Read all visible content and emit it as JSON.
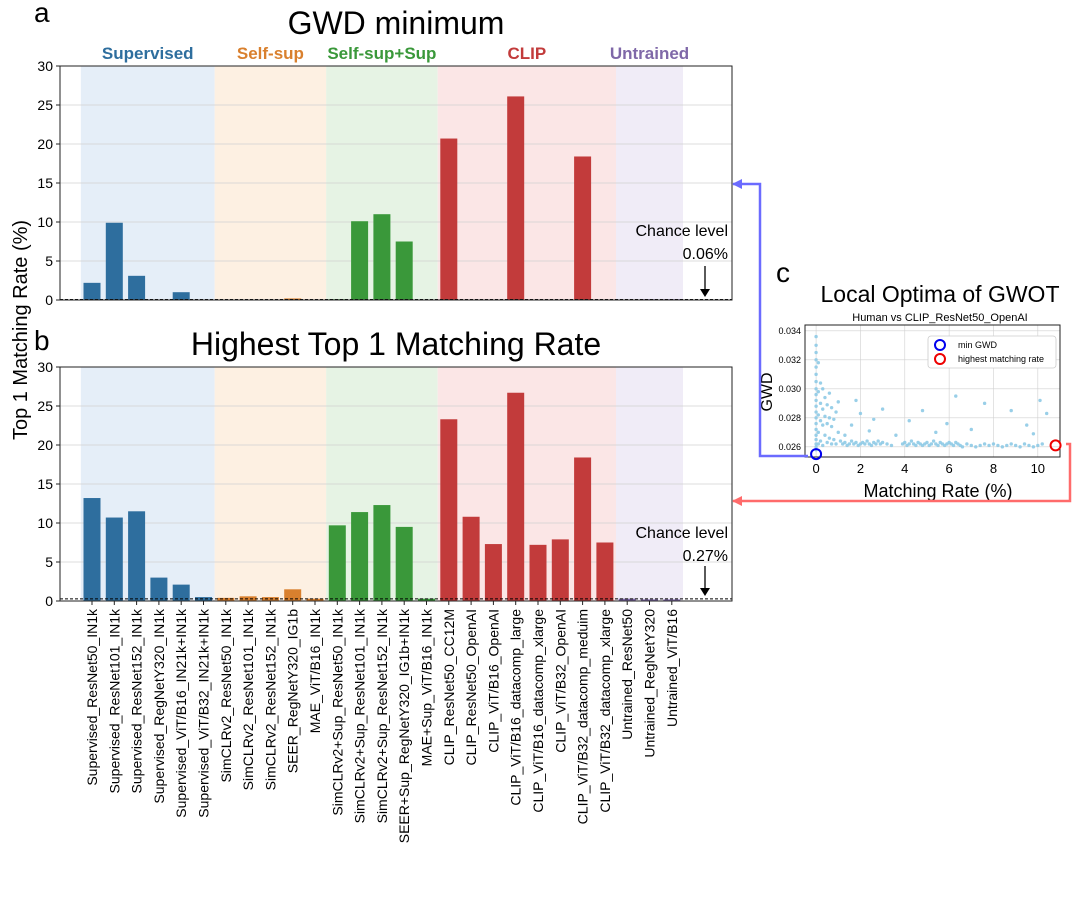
{
  "panel_letters": {
    "a": "a",
    "b": "b",
    "c": "c"
  },
  "group_colors": {
    "Supervised": "#2e6e9e",
    "Self-sup": "#d9802e",
    "Self-sup+Sup": "#3a983a",
    "CLIP": "#c23b3b",
    "Untrained": "#7f68a8"
  },
  "group_bg_colors": {
    "Supervised": "#e5eef8",
    "Self-sup": "#fdf0e2",
    "Self-sup+Sup": "#e6f3e4",
    "CLIP": "#fbe6e6",
    "Untrained": "#f0ecf7"
  },
  "chart_data": [
    {
      "type": "bar",
      "title": "GWD minimum",
      "ylabel": "Top 1 Matching Rate (%)",
      "ylim": [
        0,
        30
      ],
      "yticks": [
        0,
        5,
        10,
        15,
        20,
        25,
        30
      ],
      "groups": [
        {
          "name": "Supervised",
          "start": 0,
          "end": 5
        },
        {
          "name": "Self-sup",
          "start": 6,
          "end": 10
        },
        {
          "name": "Self-sup+Sup",
          "start": 11,
          "end": 15
        },
        {
          "name": "CLIP",
          "start": 16,
          "end": 23
        },
        {
          "name": "Untrained",
          "start": 24,
          "end": 26
        }
      ],
      "categories": [
        "Supervised_ResNet50_IN1k",
        "Supervised_ResNet101_IN1k",
        "Supervised_ResNet152_IN1k",
        "Supervised_RegNetY320_IN1k",
        "Supervised_ViT/B16_IN21k+IN1k",
        "Supervised_ViT/B32_IN21k+IN1k",
        "SimCLRv2_ResNet50_IN1k",
        "SimCLRv2_ResNet101_IN1k",
        "SimCLRv2_ResNet152_IN1k",
        "SEER_RegNetY320_IG1b",
        "MAE_ViT/B16_IN1k",
        "SimCLRv2+Sup_ResNet50_IN1k",
        "SimCLRv2+Sup_ResNet101_IN1k",
        "SimCLRv2+Sup_ResNet152_IN1k",
        "SEER+Sup_RegNetY320_IG1b+IN1k",
        "MAE+Sup_ViT/B16_IN1k",
        "CLIP_ResNet50_CC12M",
        "CLIP_ResNet50_OpenAI",
        "CLIP_ViT/B16_OpenAI",
        "CLIP_ViT/B16_datacomp_large",
        "CLIP_ViT/B16_datacomp_xlarge",
        "CLIP_ViT/B32_OpenAI",
        "CLIP_ViT/B32_datacomp_meduim",
        "CLIP_ViT/B32_datacomp_xlarge",
        "Untrained_ResNet50",
        "Untrained_RegNetY320",
        "Untrained_ViT/B16"
      ],
      "values": [
        2.2,
        9.9,
        3.1,
        0,
        1.0,
        0,
        0,
        0,
        0,
        0.2,
        0,
        0.1,
        10.1,
        11.0,
        7.5,
        0,
        20.7,
        0,
        0,
        26.1,
        0,
        0,
        18.4,
        0,
        0,
        0.1,
        0.1
      ],
      "chance_level": 0.06,
      "chance_label": "Chance level",
      "chance_value_label": "0.06%",
      "grid": "horizontal"
    },
    {
      "type": "bar",
      "title": "Highest Top 1 Matching Rate",
      "ylabel": "Top 1 Matching Rate (%)",
      "ylim": [
        0,
        30
      ],
      "yticks": [
        0,
        5,
        10,
        15,
        20,
        25,
        30
      ],
      "values": [
        13.2,
        10.7,
        11.5,
        3.0,
        2.1,
        0.5,
        0.4,
        0.6,
        0.5,
        1.5,
        0.3,
        9.7,
        11.4,
        12.3,
        9.5,
        0.3,
        23.3,
        10.8,
        7.3,
        26.7,
        7.2,
        7.9,
        18.4,
        7.5,
        0.3,
        0.2,
        0.2
      ],
      "chance_level": 0.27,
      "chance_label": "Chance level",
      "chance_value_label": "0.27%",
      "grid": "horizontal"
    },
    {
      "type": "scatter",
      "title": "Local Optima of GWOT",
      "subtitle": "Human vs CLIP_ResNet50_OpenAI",
      "xlabel": "Matching Rate (%)",
      "ylabel": "GWD",
      "xlim": [
        -0.5,
        11
      ],
      "ylim": [
        0.0253,
        0.0344
      ],
      "xticks": [
        0,
        2,
        4,
        6,
        8,
        10
      ],
      "yticks": [
        0.026,
        0.028,
        0.03,
        0.032,
        0.034
      ],
      "ytick_labels": [
        "0.026",
        "0.028",
        "0.030",
        "0.032",
        "0.034"
      ],
      "point_color": "#8ecae6",
      "legend": [
        {
          "label": "min GWD",
          "color": "#0000ee"
        },
        {
          "label": "highest matching rate",
          "color": "#ee0000"
        }
      ],
      "legend_position": "top-right",
      "highlight_min_gwd": {
        "x": 0.0,
        "y": 0.0255
      },
      "highlight_max_rate": {
        "x": 10.8,
        "y": 0.0261
      },
      "points": [
        [
          0,
          0.0262
        ],
        [
          0,
          0.0265
        ],
        [
          0,
          0.0268
        ],
        [
          0,
          0.0272
        ],
        [
          0,
          0.0276
        ],
        [
          0,
          0.028
        ],
        [
          0,
          0.0284
        ],
        [
          0,
          0.0288
        ],
        [
          0,
          0.0292
        ],
        [
          0,
          0.0296
        ],
        [
          0,
          0.03
        ],
        [
          0,
          0.0305
        ],
        [
          0,
          0.031
        ],
        [
          0,
          0.0315
        ],
        [
          0,
          0.032
        ],
        [
          0,
          0.0325
        ],
        [
          0,
          0.033
        ],
        [
          0,
          0.0336
        ],
        [
          0,
          0.0258
        ],
        [
          0,
          0.026
        ],
        [
          0.1,
          0.0262
        ],
        [
          0.1,
          0.027
        ],
        [
          0.1,
          0.0282
        ],
        [
          0.1,
          0.0298
        ],
        [
          0.1,
          0.0318
        ],
        [
          0.2,
          0.0264
        ],
        [
          0.2,
          0.0278
        ],
        [
          0.2,
          0.029
        ],
        [
          0.2,
          0.0304
        ],
        [
          0.3,
          0.0261
        ],
        [
          0.3,
          0.0275
        ],
        [
          0.3,
          0.0286
        ],
        [
          0.3,
          0.03
        ],
        [
          0.4,
          0.0268
        ],
        [
          0.4,
          0.0281
        ],
        [
          0.4,
          0.0294
        ],
        [
          0.5,
          0.0263
        ],
        [
          0.5,
          0.0276
        ],
        [
          0.5,
          0.0289
        ],
        [
          0.6,
          0.0266
        ],
        [
          0.6,
          0.028
        ],
        [
          0.6,
          0.0297
        ],
        [
          0.7,
          0.0262
        ],
        [
          0.7,
          0.0274
        ],
        [
          0.7,
          0.0287
        ],
        [
          0.8,
          0.0265
        ],
        [
          0.8,
          0.0279
        ],
        [
          0.9,
          0.0262
        ],
        [
          0.9,
          0.0284
        ],
        [
          1.0,
          0.027
        ],
        [
          1.0,
          0.0291
        ],
        [
          1.1,
          0.0264
        ],
        [
          1.2,
          0.0262
        ],
        [
          1.3,
          0.0263
        ],
        [
          1.4,
          0.0261
        ],
        [
          1.5,
          0.0262
        ],
        [
          1.6,
          0.0264
        ],
        [
          1.7,
          0.0262
        ],
        [
          1.8,
          0.0263
        ],
        [
          1.9,
          0.0261
        ],
        [
          2.0,
          0.0262
        ],
        [
          2.1,
          0.0263
        ],
        [
          2.2,
          0.0262
        ],
        [
          2.3,
          0.0264
        ],
        [
          2.4,
          0.0262
        ],
        [
          2.5,
          0.0261
        ],
        [
          2.6,
          0.0263
        ],
        [
          2.7,
          0.0262
        ],
        [
          2.8,
          0.0264
        ],
        [
          2.9,
          0.0262
        ],
        [
          3.0,
          0.0263
        ],
        [
          3.2,
          0.0262
        ],
        [
          3.4,
          0.0261
        ],
        [
          1.3,
          0.0268
        ],
        [
          1.6,
          0.0275
        ],
        [
          2.0,
          0.0283
        ],
        [
          2.4,
          0.0271
        ],
        [
          3.0,
          0.0286
        ],
        [
          3.6,
          0.0268
        ],
        [
          1.8,
          0.0292
        ],
        [
          2.6,
          0.0279
        ],
        [
          3.9,
          0.0262
        ],
        [
          4.0,
          0.0263
        ],
        [
          4.1,
          0.0261
        ],
        [
          4.2,
          0.0262
        ],
        [
          4.3,
          0.0264
        ],
        [
          4.4,
          0.0262
        ],
        [
          4.5,
          0.0261
        ],
        [
          4.6,
          0.0263
        ],
        [
          4.7,
          0.0262
        ],
        [
          4.8,
          0.0261
        ],
        [
          4.9,
          0.0262
        ],
        [
          5.0,
          0.0263
        ],
        [
          5.1,
          0.0261
        ],
        [
          5.2,
          0.0262
        ],
        [
          5.3,
          0.0264
        ],
        [
          5.4,
          0.0262
        ],
        [
          5.5,
          0.0261
        ],
        [
          5.6,
          0.0263
        ],
        [
          5.7,
          0.0262
        ],
        [
          5.8,
          0.0261
        ],
        [
          5.9,
          0.0262
        ],
        [
          6.0,
          0.0263
        ],
        [
          6.1,
          0.0262
        ],
        [
          6.2,
          0.0261
        ],
        [
          6.3,
          0.0263
        ],
        [
          6.4,
          0.0262
        ],
        [
          6.5,
          0.0261
        ],
        [
          6.6,
          0.026
        ],
        [
          6.8,
          0.0262
        ],
        [
          7.0,
          0.0261
        ],
        [
          7.2,
          0.026
        ],
        [
          7.4,
          0.0261
        ],
        [
          7.6,
          0.0262
        ],
        [
          7.8,
          0.0261
        ],
        [
          8.0,
          0.0262
        ],
        [
          8.2,
          0.0261
        ],
        [
          8.4,
          0.026
        ],
        [
          8.6,
          0.0261
        ],
        [
          8.8,
          0.0262
        ],
        [
          9.0,
          0.0261
        ],
        [
          9.2,
          0.026
        ],
        [
          9.4,
          0.0262
        ],
        [
          9.6,
          0.0261
        ],
        [
          9.8,
          0.026
        ],
        [
          10.0,
          0.0261
        ],
        [
          10.2,
          0.0262
        ],
        [
          4.2,
          0.0278
        ],
        [
          4.8,
          0.0285
        ],
        [
          5.4,
          0.027
        ],
        [
          6.3,
          0.0295
        ],
        [
          7.6,
          0.029
        ],
        [
          8.8,
          0.0285
        ],
        [
          9.5,
          0.0275
        ],
        [
          10.1,
          0.0292
        ],
        [
          10.4,
          0.0283
        ],
        [
          5.9,
          0.0276
        ],
        [
          7.0,
          0.0272
        ],
        [
          9.8,
          0.0269
        ]
      ]
    }
  ]
}
